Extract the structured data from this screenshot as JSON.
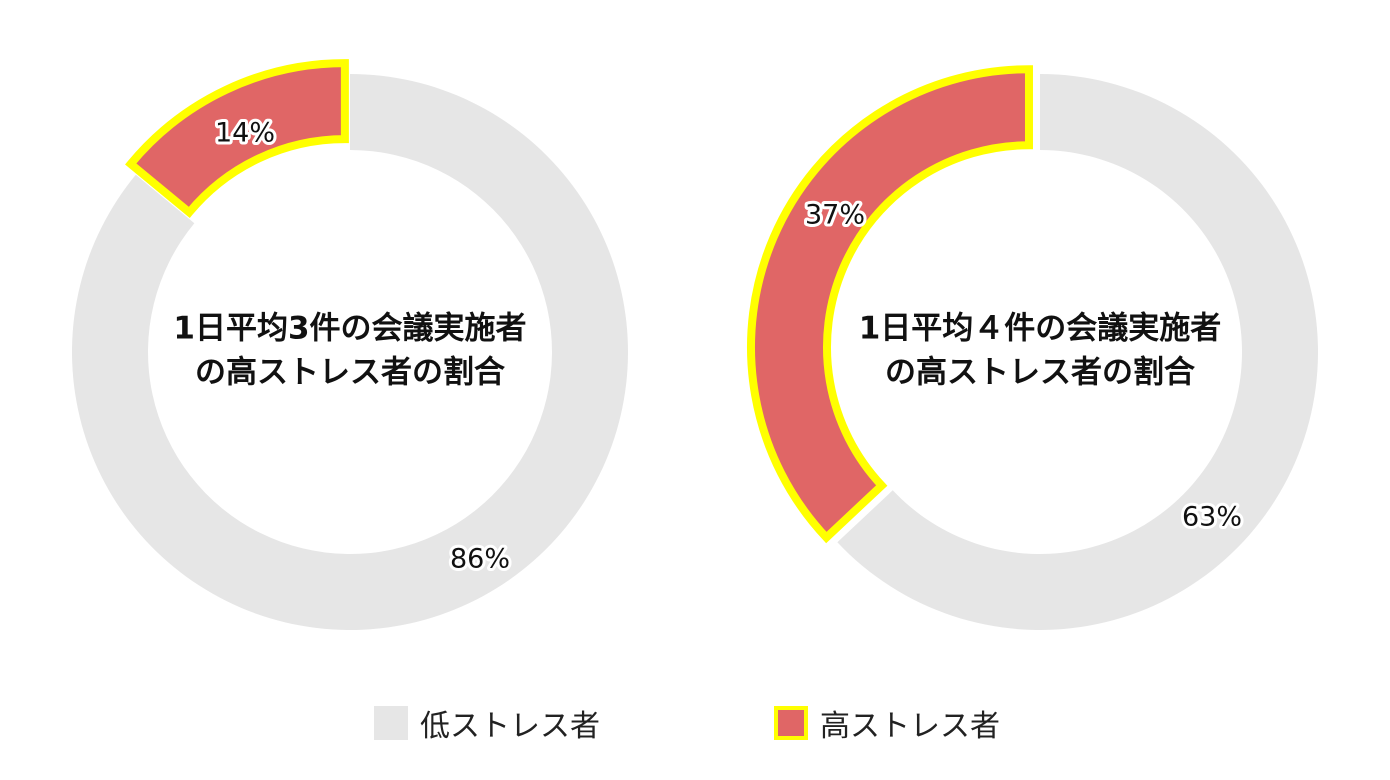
{
  "colors": {
    "low": "#e6e6e6",
    "high": "#e06666",
    "highlight": "#ffff00"
  },
  "chart_data": [
    {
      "type": "pie",
      "title_lines": [
        "1日平均3件の会議実施者",
        "の高ストレス者の割合"
      ],
      "slices": [
        {
          "name": "高ストレス者",
          "value": 14,
          "label": "14%"
        },
        {
          "name": "低ストレス者",
          "value": 86,
          "label": "86%"
        }
      ]
    },
    {
      "type": "pie",
      "title_lines": [
        "1日平均４件の会議実施者",
        "の高ストレス者の割合"
      ],
      "slices": [
        {
          "name": "高ストレス者",
          "value": 37,
          "label": "37%"
        },
        {
          "name": "低ストレス者",
          "value": 63,
          "label": "63%"
        }
      ]
    }
  ],
  "legend": {
    "items": [
      {
        "label": "低ストレス者",
        "key": "low"
      },
      {
        "label": "高ストレス者",
        "key": "high"
      }
    ],
    "placement": "bottom"
  }
}
